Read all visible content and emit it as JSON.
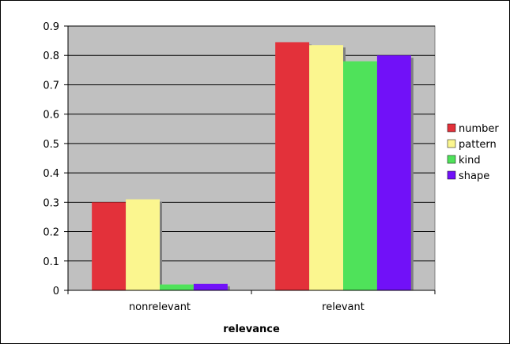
{
  "chart_data": {
    "type": "bar",
    "categories": [
      "nonrelevant",
      "relevant"
    ],
    "series": [
      {
        "name": "number",
        "values": [
          0.3,
          0.845
        ]
      },
      {
        "name": "pattern",
        "values": [
          0.31,
          0.835
        ]
      },
      {
        "name": "kind",
        "values": [
          0.02,
          0.78
        ]
      },
      {
        "name": "shape",
        "values": [
          0.022,
          0.8
        ]
      }
    ],
    "colors": [
      "#e3313a",
      "#fbf68f",
      "#4fe25a",
      "#7111f8"
    ],
    "xlabel": "relevance",
    "ylabel": "",
    "ylim": [
      0,
      0.9
    ],
    "yticks": [
      "0",
      "0.1",
      "0.2",
      "0.3",
      "0.4",
      "0.5",
      "0.6",
      "0.7",
      "0.8",
      "0.9"
    ],
    "grid": true,
    "plot_background": "#c0c0c0",
    "legend_position": "right"
  }
}
